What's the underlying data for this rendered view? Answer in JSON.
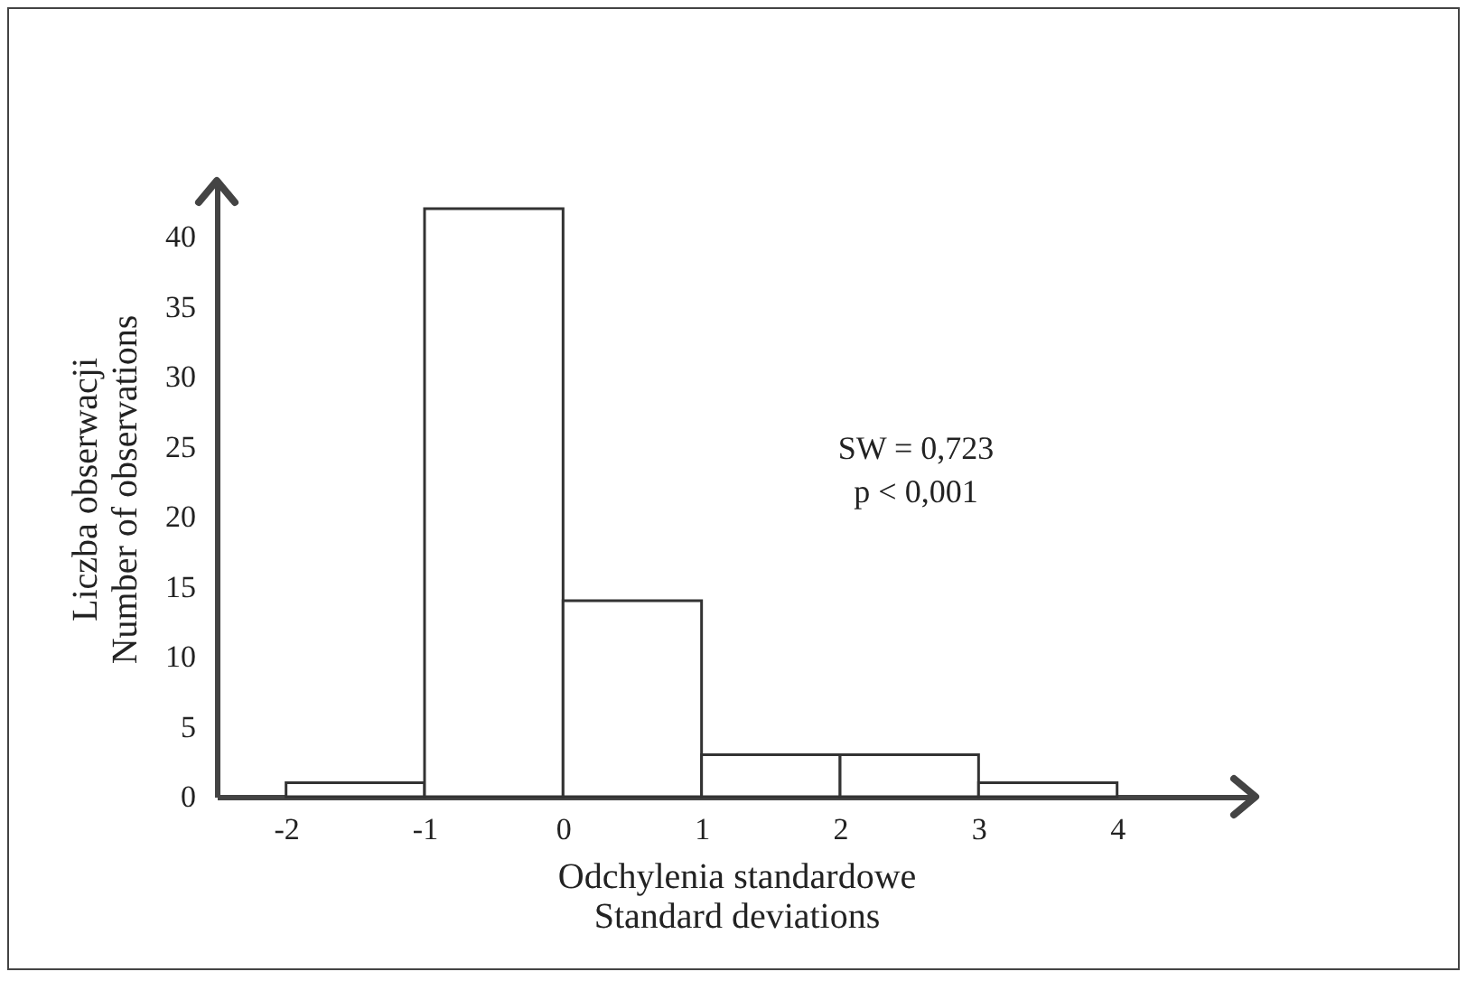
{
  "chart_data": {
    "type": "histogram",
    "bins": [
      -2,
      -1,
      0,
      1,
      2,
      3,
      4
    ],
    "values": [
      1,
      42,
      14,
      3,
      3,
      1
    ],
    "color": "#ffffff",
    "xlim": [
      -2.5,
      5
    ],
    "xticks": [
      -2,
      -1,
      0,
      1,
      2,
      3,
      4
    ],
    "ylim": [
      0,
      44
    ],
    "yticks": [
      0,
      5,
      10,
      15,
      20,
      25,
      30,
      35,
      40
    ],
    "xlabel": "Odchylenia  standardowe\nStandard deviations",
    "ylabel": "Liczba obserwacji\nNumber of observations",
    "annotations": [
      "SW = 0,723\np < 0,001"
    ],
    "grid": false
  }
}
